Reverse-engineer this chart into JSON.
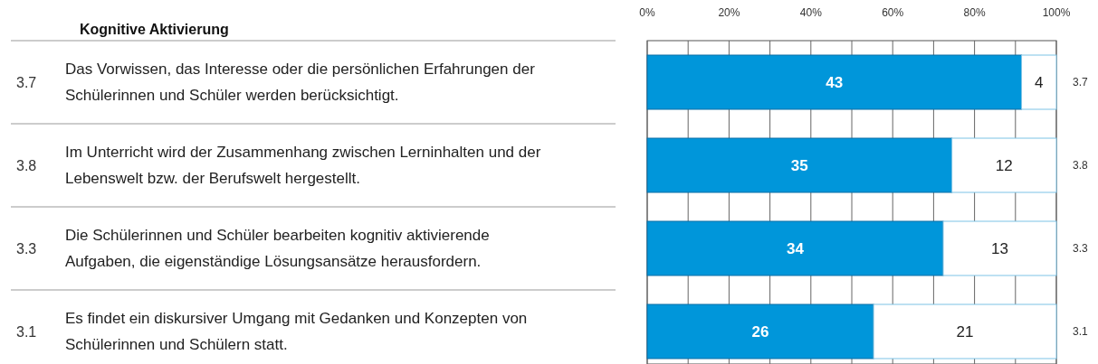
{
  "chart_data": {
    "type": "bar",
    "orientation": "horizontal",
    "stacked": true,
    "title": "Kognitive Aktivierung",
    "categories": [
      "Das Vorwissen, das Interesse oder die persönlichen Erfahrungen der Schülerinnen und Schüler werden berücksichtigt.",
      "Im Unterricht wird der Zusammenhang zwischen Lerninhalten und der Lebenswelt bzw. der Berufswelt hergestellt.",
      "Die Schülerinnen und Schüler bearbeiten kognitiv aktivierende Aufgaben, die eigenständige Lösungsansätze herausfordern.",
      "Es findet ein diskursiver Umgang mit Gedanken und Konzepten von Schülerinnen und Schülern statt."
    ],
    "series": [
      {
        "color": "#0096da",
        "values": [
          43,
          35,
          34,
          26
        ]
      },
      {
        "color": "#ffffff",
        "values": [
          4,
          12,
          13,
          21
        ]
      }
    ],
    "xlim": [
      0,
      47
    ],
    "data_labels": true,
    "x2lim": [
      0,
      100
    ],
    "x2ticks": [
      {
        "value": 0,
        "label": "0%"
      },
      {
        "value": 10,
        "label": null
      },
      {
        "value": 20,
        "label": "20%"
      },
      {
        "value": 30,
        "label": null
      },
      {
        "value": 40,
        "label": "40%"
      },
      {
        "value": 50,
        "label": null
      },
      {
        "value": 60,
        "label": "60%"
      },
      {
        "value": 70,
        "label": null
      },
      {
        "value": 80,
        "label": "80%"
      },
      {
        "value": 90,
        "label": null
      },
      {
        "value": 100,
        "label": "100%"
      }
    ],
    "grid": "x",
    "annotations": [
      "3.7",
      "3.8",
      "3.3",
      "3.1",
      "3.7",
      "3.8",
      "3.3",
      "3.1"
    ]
  }
}
